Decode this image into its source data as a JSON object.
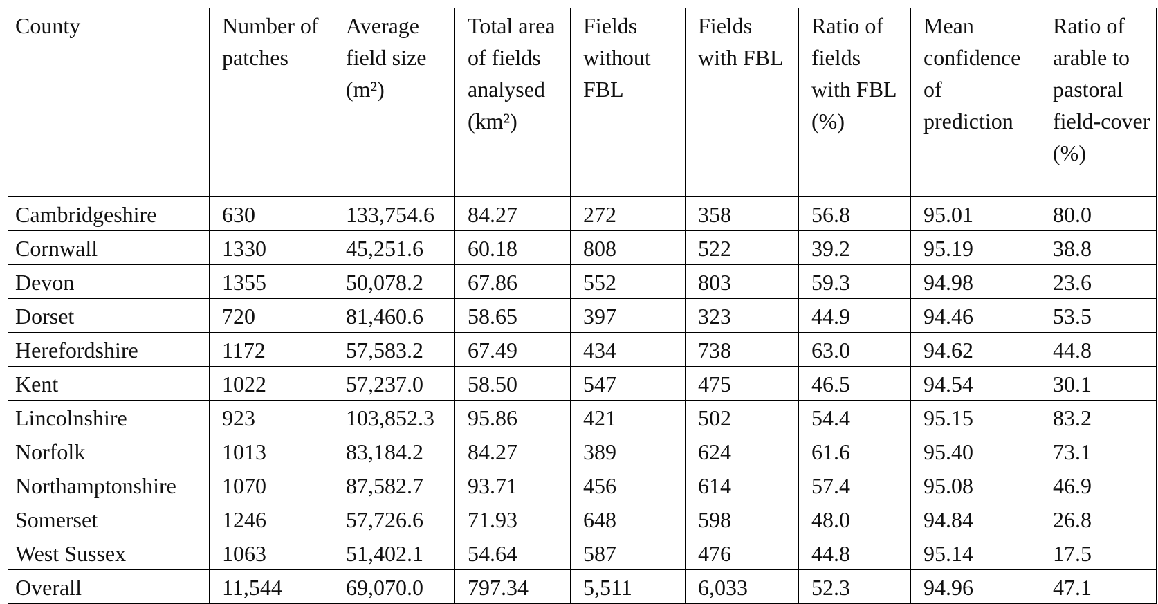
{
  "table": {
    "header": [
      "County",
      "Number of patches",
      "Average field size (m²)",
      "Total area of fields analysed (km²)",
      "Fields without FBL",
      "Fields with FBL",
      "Ratio of fields with FBL (%)",
      "Mean confidence of prediction",
      "Ratio of arable to pastoral field-cover (%)"
    ],
    "rows": [
      [
        "Cambridgeshire",
        "630",
        "133,754.6",
        "84.27",
        "272",
        "358",
        "56.8",
        "95.01",
        "80.0"
      ],
      [
        "Cornwall",
        "1330",
        "45,251.6",
        "60.18",
        "808",
        "522",
        "39.2",
        "95.19",
        "38.8"
      ],
      [
        "Devon",
        "1355",
        "50,078.2",
        "67.86",
        "552",
        "803",
        "59.3",
        "94.98",
        "23.6"
      ],
      [
        "Dorset",
        "720",
        "81,460.6",
        "58.65",
        "397",
        "323",
        "44.9",
        "94.46",
        "53.5"
      ],
      [
        "Herefordshire",
        "1172",
        "57,583.2",
        "67.49",
        "434",
        "738",
        "63.0",
        "94.62",
        "44.8"
      ],
      [
        "Kent",
        "1022",
        "57,237.0",
        "58.50",
        "547",
        "475",
        "46.5",
        "94.54",
        "30.1"
      ],
      [
        "Lincolnshire",
        "923",
        "103,852.3",
        "95.86",
        "421",
        "502",
        "54.4",
        "95.15",
        "83.2"
      ],
      [
        "Norfolk",
        "1013",
        "83,184.2",
        "84.27",
        "389",
        "624",
        "61.6",
        "95.40",
        "73.1"
      ],
      [
        "Northamptonshire",
        "1070",
        "87,582.7",
        "93.71",
        "456",
        "614",
        "57.4",
        "95.08",
        "46.9"
      ],
      [
        "Somerset",
        "1246",
        "57,726.6",
        "71.93",
        "648",
        "598",
        "48.0",
        "94.84",
        "26.8"
      ],
      [
        "West Sussex",
        "1063",
        "51,402.1",
        "54.64",
        "587",
        "476",
        "44.8",
        "95.14",
        "17.5"
      ],
      [
        "Overall",
        "11,544",
        "69,070.0",
        "797.34",
        "5,511",
        "6,033",
        "52.3",
        "94.96",
        "47.1"
      ]
    ]
  }
}
